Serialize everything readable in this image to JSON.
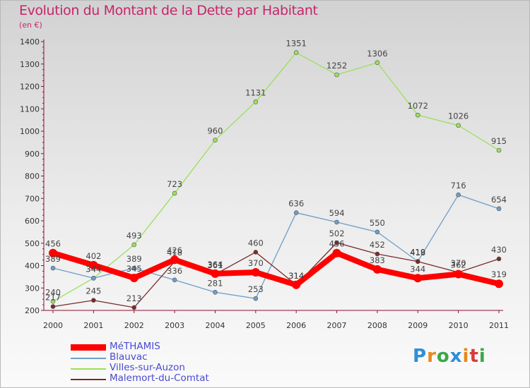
{
  "header": {
    "title": "Evolution du Montant de la Dette par Habitant",
    "subtitle": "(en €)"
  },
  "logo": {
    "text": "Proxiti",
    "colors": [
      "#2e8fd6",
      "#e8891a",
      "#3aa84a",
      "#2e8fd6",
      "#e8891a",
      "#d93b3b",
      "#3aa84a"
    ]
  },
  "chart_data": {
    "type": "line",
    "title": "Evolution du Montant de la Dette par Habitant",
    "subtitle": "(en €)",
    "xlabel": "",
    "ylabel": "",
    "x": [
      "2000",
      "2001",
      "2002",
      "2003",
      "2004",
      "2005",
      "2006",
      "2007",
      "2008",
      "2009",
      "2010",
      "2011"
    ],
    "ylim": [
      200,
      1400
    ],
    "yticks": [
      "200",
      "300",
      "400",
      "500",
      "600",
      "700",
      "800",
      "900",
      "1000",
      "1100",
      "1200",
      "1300",
      "1400"
    ],
    "grid": false,
    "legend_position": "bottom-left",
    "series": [
      {
        "name": "MéTHAMIS",
        "color": "#ff0000",
        "values": [
          456,
          402,
          345,
          426,
          364,
          370,
          314,
          456,
          383,
          344,
          362,
          319
        ],
        "labels": [
          "456",
          "402",
          "345",
          "426",
          "364",
          "370",
          "314",
          "456",
          "383",
          "344",
          "362",
          "319"
        ]
      },
      {
        "name": "Blauvac",
        "color": "#6e9ec8",
        "values": [
          389,
          344,
          389,
          336,
          281,
          253,
          636,
          594,
          550,
          419,
          716,
          654
        ],
        "labels": [
          "389",
          "344",
          "389",
          "336",
          "281",
          "253",
          "636",
          "594",
          "550",
          "419",
          "716",
          "654"
        ]
      },
      {
        "name": "Villes-sur-Auzon",
        "color": "#9be05a",
        "values": [
          240,
          344,
          493,
          723,
          960,
          1131,
          1351,
          1252,
          1306,
          1072,
          1026,
          915
        ],
        "labels": [
          "240",
          "344",
          "493",
          "723",
          "960",
          "1131",
          "1351",
          "1252",
          "1306",
          "1072",
          "1026",
          "915"
        ]
      },
      {
        "name": "Malemort-du-Comtat",
        "color": "#7a2a2a",
        "values": [
          217,
          245,
          213,
          418,
          361,
          460,
          314,
          502,
          452,
          418,
          370,
          430
        ],
        "labels": [
          "217",
          "245",
          "213",
          "418",
          "361",
          "460",
          "314",
          "502",
          "452",
          "418",
          "370",
          "430"
        ]
      }
    ]
  }
}
